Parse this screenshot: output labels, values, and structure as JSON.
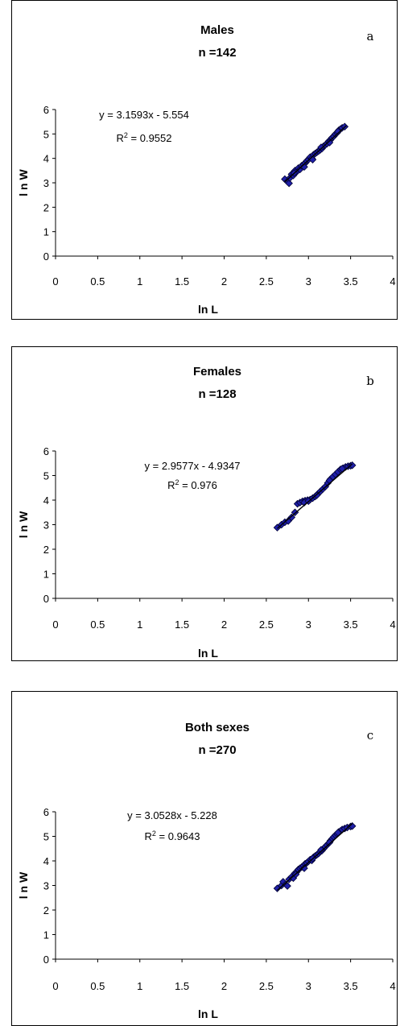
{
  "colors": {
    "marker_fill": "#1f1fa8",
    "marker_stroke": "#000033",
    "trend": "#000000",
    "axis": "#000000"
  },
  "chart_data": [
    {
      "type": "scatter",
      "letter": "a",
      "title": "Males",
      "subtitle": "n =142",
      "xlabel": "ln L",
      "ylabel": "l n W",
      "xlim": [
        0,
        4
      ],
      "ylim": [
        0,
        6
      ],
      "xticks": [
        "0",
        "0.5",
        "1",
        "1.5",
        "2",
        "2.5",
        "3",
        "3.5",
        "4"
      ],
      "yticks": [
        "0",
        "1",
        "2",
        "3",
        "4",
        "5",
        "6"
      ],
      "grid": false,
      "equation": "y = 3.1593x - 5.554",
      "r2_prefix": "R",
      "r2_sup": "2",
      "r2_value": " = 0.9552",
      "trendline": {
        "slope": 3.1593,
        "intercept": -5.554,
        "x_range": [
          2.72,
          3.45
        ]
      },
      "points": [
        [
          2.72,
          3.15
        ],
        [
          2.75,
          3.05
        ],
        [
          2.77,
          2.98
        ],
        [
          2.78,
          3.2
        ],
        [
          2.8,
          3.35
        ],
        [
          2.82,
          3.3
        ],
        [
          2.84,
          3.5
        ],
        [
          2.86,
          3.45
        ],
        [
          2.88,
          3.6
        ],
        [
          2.9,
          3.55
        ],
        [
          2.92,
          3.7
        ],
        [
          2.94,
          3.75
        ],
        [
          2.96,
          3.8
        ],
        [
          2.98,
          3.9
        ],
        [
          3.0,
          3.95
        ],
        [
          3.02,
          4.05
        ],
        [
          3.04,
          4.0
        ],
        [
          3.06,
          4.15
        ],
        [
          3.08,
          4.2
        ],
        [
          3.1,
          4.25
        ],
        [
          3.12,
          4.3
        ],
        [
          3.14,
          4.35
        ],
        [
          3.16,
          4.4
        ],
        [
          3.18,
          4.5
        ],
        [
          3.2,
          4.55
        ],
        [
          3.22,
          4.6
        ],
        [
          3.24,
          4.7
        ],
        [
          3.26,
          4.75
        ],
        [
          3.28,
          4.85
        ],
        [
          3.3,
          4.9
        ],
        [
          3.32,
          5.0
        ],
        [
          3.34,
          5.05
        ],
        [
          3.36,
          5.15
        ],
        [
          3.38,
          5.2
        ],
        [
          3.4,
          5.25
        ],
        [
          3.43,
          5.3
        ],
        [
          2.83,
          3.4
        ],
        [
          2.95,
          3.65
        ],
        [
          3.05,
          3.95
        ],
        [
          3.15,
          4.45
        ],
        [
          3.25,
          4.65
        ],
        [
          3.35,
          5.1
        ]
      ]
    },
    {
      "type": "scatter",
      "letter": "b",
      "title": "Females",
      "subtitle": "n =128",
      "xlabel": "ln L",
      "ylabel": "l n W",
      "xlim": [
        0,
        4
      ],
      "ylim": [
        0,
        6
      ],
      "xticks": [
        "0",
        "0.5",
        "1",
        "1.5",
        "2",
        "2.5",
        "3",
        "3.5",
        "4"
      ],
      "yticks": [
        "0",
        "1",
        "2",
        "3",
        "4",
        "5",
        "6"
      ],
      "grid": false,
      "equation": "y = 2.9577x - 4.9347",
      "r2_prefix": "R",
      "r2_sup": "2",
      "r2_value": " = 0.976",
      "trendline": {
        "slope": 2.9577,
        "intercept": -4.9347,
        "x_range": [
          2.63,
          3.52
        ]
      },
      "points": [
        [
          2.63,
          2.88
        ],
        [
          2.68,
          3.0
        ],
        [
          2.72,
          3.1
        ],
        [
          2.76,
          3.15
        ],
        [
          2.8,
          3.3
        ],
        [
          2.84,
          3.5
        ],
        [
          2.87,
          3.85
        ],
        [
          2.9,
          3.9
        ],
        [
          2.93,
          3.95
        ],
        [
          2.96,
          3.98
        ],
        [
          2.99,
          4.0
        ],
        [
          3.02,
          4.02
        ],
        [
          3.05,
          4.08
        ],
        [
          3.08,
          4.15
        ],
        [
          3.11,
          4.25
        ],
        [
          3.14,
          4.35
        ],
        [
          3.17,
          4.45
        ],
        [
          3.2,
          4.55
        ],
        [
          3.23,
          4.7
        ],
        [
          3.26,
          4.85
        ],
        [
          3.29,
          4.95
        ],
        [
          3.32,
          5.05
        ],
        [
          3.35,
          5.15
        ],
        [
          3.38,
          5.25
        ],
        [
          3.41,
          5.3
        ],
        [
          3.44,
          5.35
        ],
        [
          3.47,
          5.38
        ],
        [
          3.5,
          5.4
        ],
        [
          3.52,
          5.42
        ],
        [
          2.95,
          3.9
        ],
        [
          3.0,
          3.96
        ],
        [
          3.1,
          4.2
        ],
        [
          3.25,
          4.8
        ],
        [
          3.4,
          5.28
        ]
      ]
    },
    {
      "type": "scatter",
      "letter": "c",
      "title": "Both sexes",
      "subtitle": "n =270",
      "xlabel": "ln L",
      "ylabel": "l n W",
      "xlim": [
        0,
        4
      ],
      "ylim": [
        0,
        6
      ],
      "xticks": [
        "0",
        "0.5",
        "1",
        "1.5",
        "2",
        "2.5",
        "3",
        "3.5",
        "4"
      ],
      "yticks": [
        "0",
        "1",
        "2",
        "3",
        "4",
        "5",
        "6"
      ],
      "grid": false,
      "equation": "y = 3.0528x - 5.228",
      "r2_prefix": "R",
      "r2_sup": "2",
      "r2_value": " = 0.9643",
      "trendline": {
        "slope": 3.0528,
        "intercept": -5.228,
        "x_range": [
          2.63,
          3.52
        ]
      },
      "points": [
        [
          2.63,
          2.88
        ],
        [
          2.68,
          3.0
        ],
        [
          2.7,
          3.15
        ],
        [
          2.73,
          3.05
        ],
        [
          2.75,
          2.98
        ],
        [
          2.77,
          3.25
        ],
        [
          2.8,
          3.35
        ],
        [
          2.82,
          3.3
        ],
        [
          2.84,
          3.5
        ],
        [
          2.86,
          3.55
        ],
        [
          2.88,
          3.65
        ],
        [
          2.9,
          3.7
        ],
        [
          2.92,
          3.75
        ],
        [
          2.94,
          3.8
        ],
        [
          2.96,
          3.88
        ],
        [
          2.98,
          3.92
        ],
        [
          3.0,
          3.98
        ],
        [
          3.02,
          4.05
        ],
        [
          3.04,
          4.02
        ],
        [
          3.06,
          4.15
        ],
        [
          3.08,
          4.2
        ],
        [
          3.1,
          4.25
        ],
        [
          3.12,
          4.3
        ],
        [
          3.14,
          4.38
        ],
        [
          3.16,
          4.42
        ],
        [
          3.18,
          4.5
        ],
        [
          3.2,
          4.58
        ],
        [
          3.22,
          4.65
        ],
        [
          3.24,
          4.72
        ],
        [
          3.26,
          4.82
        ],
        [
          3.28,
          4.9
        ],
        [
          3.3,
          4.98
        ],
        [
          3.32,
          5.05
        ],
        [
          3.34,
          5.1
        ],
        [
          3.36,
          5.18
        ],
        [
          3.38,
          5.22
        ],
        [
          3.4,
          5.28
        ],
        [
          3.43,
          5.32
        ],
        [
          3.46,
          5.36
        ],
        [
          3.5,
          5.4
        ],
        [
          3.52,
          5.42
        ],
        [
          2.85,
          3.45
        ],
        [
          2.95,
          3.7
        ],
        [
          3.05,
          4.1
        ],
        [
          3.15,
          4.45
        ],
        [
          3.25,
          4.75
        ],
        [
          3.35,
          5.15
        ]
      ]
    }
  ]
}
